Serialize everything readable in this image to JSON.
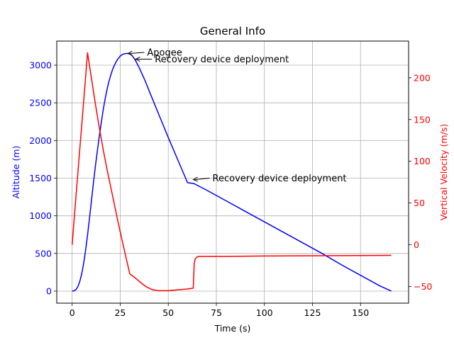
{
  "chart_data": {
    "type": "line",
    "title": "General Info",
    "xlabel": "Time (s)",
    "ylabel_left": "Altitude (m)",
    "ylabel_right": "Vertical Velocity (m/s)",
    "xlim": [
      -8,
      175
    ],
    "ylim_left": [
      -160,
      3320
    ],
    "ylim_right": [
      -70,
      244
    ],
    "grid": true,
    "x_ticks": [
      0,
      25,
      50,
      75,
      100,
      125,
      150
    ],
    "y_left_ticks": [
      0,
      500,
      1000,
      1500,
      2000,
      2500,
      3000
    ],
    "y_right_ticks": [
      -50,
      0,
      50,
      100,
      150,
      200
    ],
    "colors": {
      "altitude": "#0000ff",
      "velocity": "#ff0000",
      "grid": "#b0b0b0"
    },
    "series": [
      {
        "name": "Altitude (m)",
        "axis": "left",
        "x": [
          0,
          1,
          2,
          3,
          4,
          5,
          6,
          7,
          8,
          9,
          10,
          11,
          12,
          13,
          14,
          15,
          16,
          17,
          18,
          19,
          20,
          21,
          22,
          23,
          24,
          25,
          26,
          27,
          28,
          29,
          30,
          31,
          32,
          33,
          35,
          38,
          41,
          45,
          50,
          55,
          60,
          63,
          64,
          70,
          80,
          90,
          100,
          110,
          120,
          130,
          140,
          150,
          160,
          166
        ],
        "values": [
          0,
          5,
          20,
          60,
          130,
          230,
          370,
          540,
          740,
          960,
          1190,
          1420,
          1640,
          1840,
          2030,
          2210,
          2380,
          2530,
          2660,
          2770,
          2860,
          2940,
          3000,
          3050,
          3090,
          3120,
          3140,
          3150,
          3155,
          3155,
          3150,
          3130,
          3100,
          3060,
          2960,
          2790,
          2600,
          2350,
          2040,
          1740,
          1440,
          1430,
          1420,
          1340,
          1200,
          1060,
          920,
          780,
          640,
          500,
          350,
          210,
          70,
          0
        ]
      },
      {
        "name": "Vertical Velocity (m/s)",
        "axis": "right",
        "x": [
          0,
          2,
          4,
          6,
          8,
          10,
          12,
          14,
          16,
          18,
          20,
          22,
          24,
          26,
          28,
          30,
          33,
          36,
          39,
          42,
          45,
          50,
          55,
          60,
          63,
          63.5,
          64,
          65,
          66,
          70,
          80,
          100,
          120,
          140,
          160,
          166
        ],
        "values": [
          0,
          58,
          115,
          172,
          230,
          200,
          170,
          142,
          116,
          92,
          70,
          48,
          26,
          5,
          -15,
          -35,
          -40,
          -46,
          -51,
          -54,
          -55,
          -55,
          -54,
          -53,
          -52,
          -22,
          -17,
          -14.5,
          -14,
          -14,
          -14,
          -13.5,
          -13.2,
          -13,
          -12.8,
          -12.7
        ]
      }
    ],
    "annotations": [
      {
        "text": "Apogee",
        "x": 29,
        "y": 3155,
        "text_x": 39,
        "text_y": 3170
      },
      {
        "text": "Recovery device deployment",
        "x": 33,
        "y": 3080,
        "text_x": 43,
        "text_y": 3080
      },
      {
        "text": "Recovery device deployment",
        "x": 63,
        "y": 1480,
        "text_x": 73,
        "text_y": 1500
      }
    ]
  }
}
